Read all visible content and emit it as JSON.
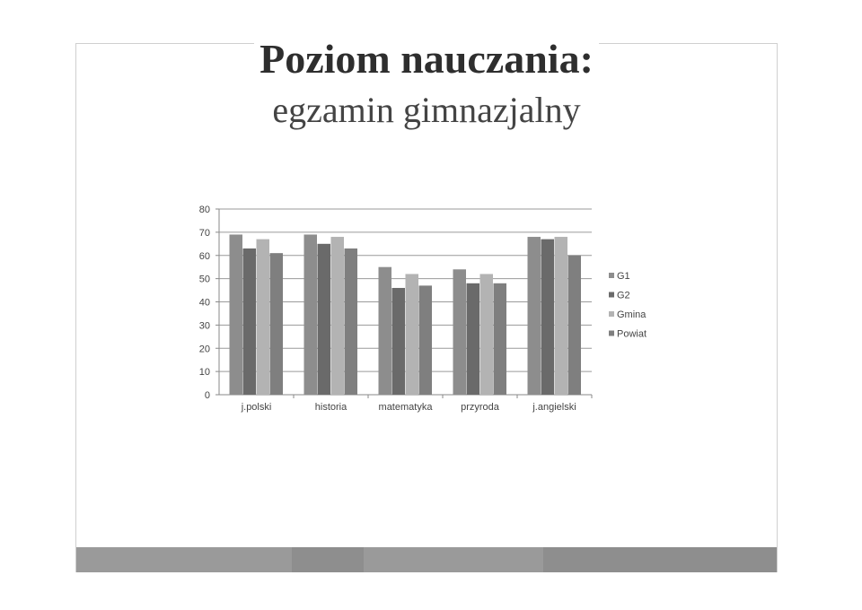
{
  "slide": {
    "title": "Poziom nauczania:",
    "subtitle": "egzamin gimnazjalny"
  },
  "chart_data": {
    "type": "bar",
    "categories": [
      "j.polski",
      "historia",
      "matematyka",
      "przyroda",
      "j.angielski"
    ],
    "series": [
      {
        "name": "G1",
        "values": [
          69,
          69,
          55,
          54,
          68
        ],
        "color": "#8d8d8d"
      },
      {
        "name": "G2",
        "values": [
          63,
          65,
          46,
          48,
          67
        ],
        "color": "#6a6a6a"
      },
      {
        "name": "Gmina",
        "values": [
          67,
          68,
          52,
          52,
          68
        ],
        "color": "#b3b3b3"
      },
      {
        "name": "Powiat",
        "values": [
          61,
          63,
          47,
          48,
          60
        ],
        "color": "#7f7f7f"
      }
    ],
    "ylim": [
      0,
      80
    ],
    "yticks": [
      0,
      10,
      20,
      30,
      40,
      50,
      60,
      70,
      80
    ],
    "grid": true,
    "legend": "right"
  }
}
